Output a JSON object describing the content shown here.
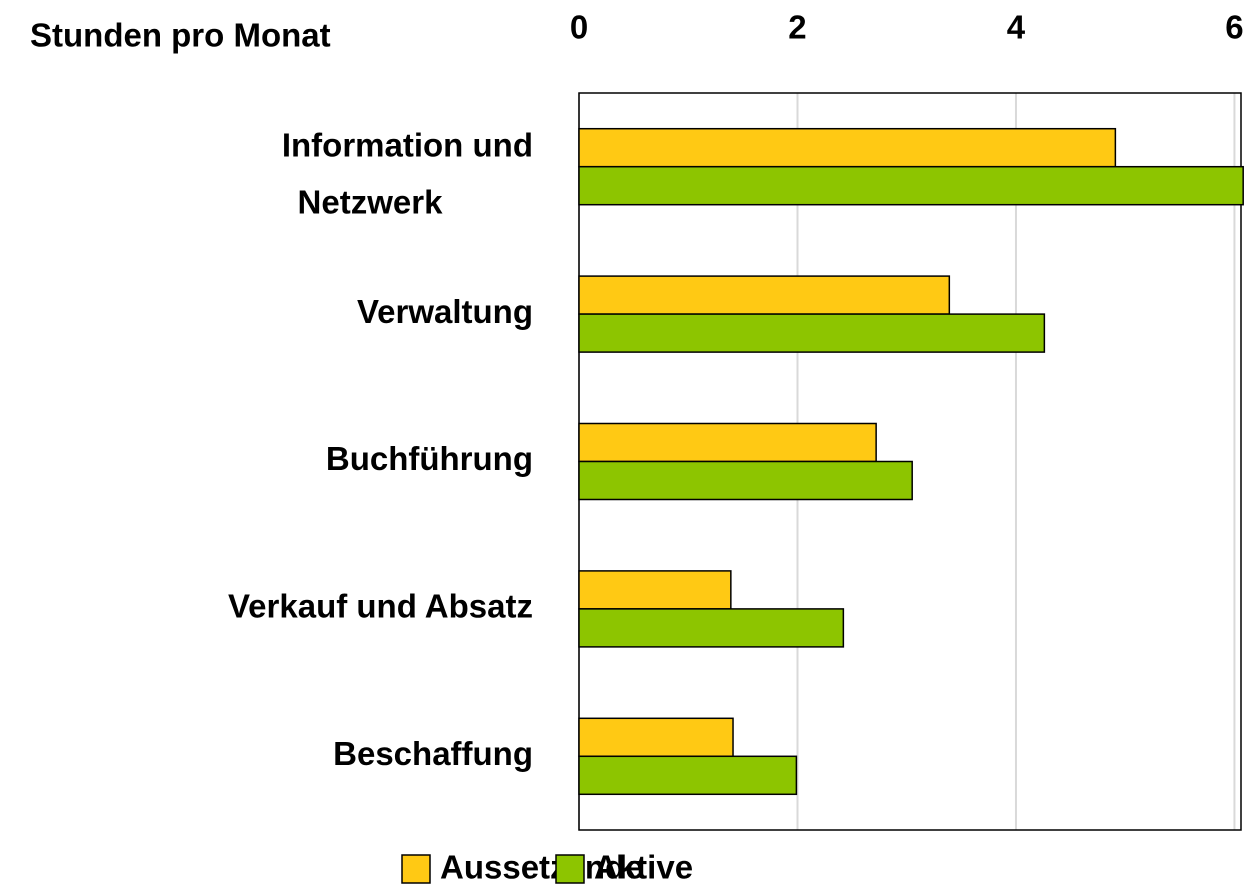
{
  "chart_data": {
    "type": "hbar",
    "title": "Stunden pro Monat",
    "categories": [
      "Information und Netzwerk",
      "Verwaltung",
      "Buchführung",
      "Verkauf und Absatz",
      "Beschaffung"
    ],
    "series": [
      {
        "name": "Aussetzende",
        "color": "#FFC914",
        "values": [
          4.91,
          3.39,
          2.72,
          1.39,
          1.41
        ]
      },
      {
        "name": "Aktive",
        "color": "#8DC500",
        "values": [
          6.08,
          4.26,
          3.05,
          2.42,
          1.99
        ]
      }
    ],
    "xlim": [
      0,
      6.06
    ],
    "xticks": [
      0,
      2,
      4,
      6
    ],
    "grid": true,
    "legend": "bottom"
  }
}
